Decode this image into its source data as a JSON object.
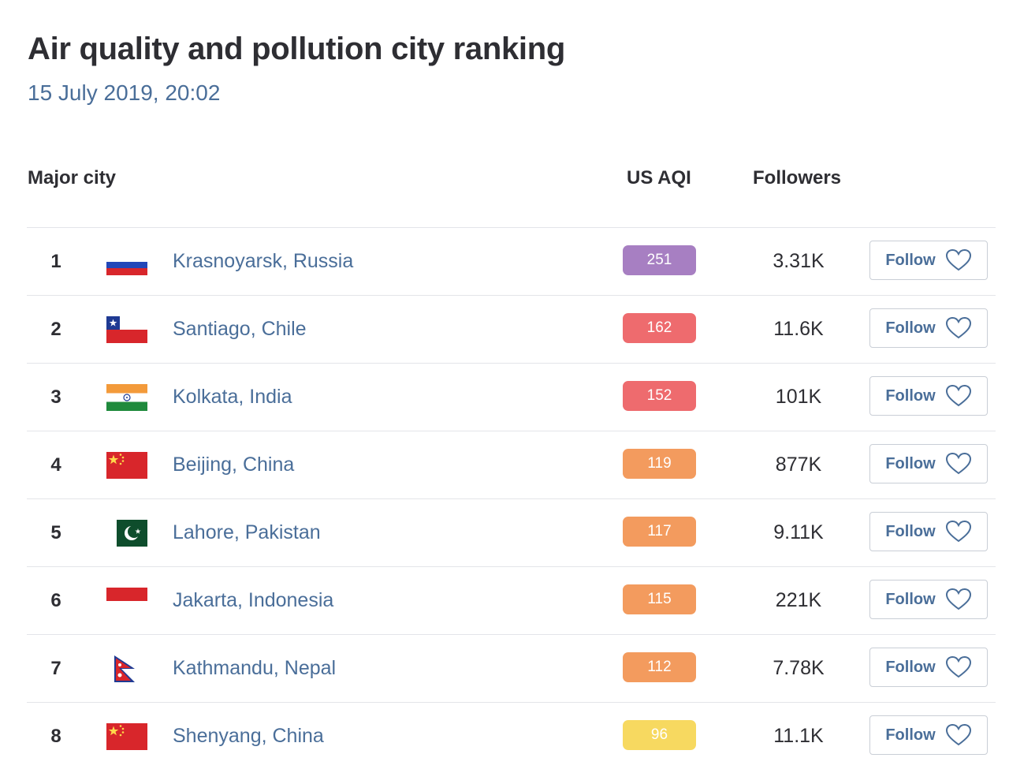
{
  "page": {
    "title": "Air quality and pollution city ranking",
    "timestamp": "15 July 2019, 20:02"
  },
  "table": {
    "headers": {
      "city": "Major city",
      "aqi": "US AQI",
      "followers": "Followers"
    },
    "follow_label": "Follow",
    "heart_icon": "heart-outline-icon",
    "rows": [
      {
        "rank": "1",
        "flag": "russia-flag-icon",
        "city": "Krasnoyarsk, Russia",
        "aqi": "251",
        "aqi_color": "#a77fc2",
        "followers": "3.31K"
      },
      {
        "rank": "2",
        "flag": "chile-flag-icon",
        "city": "Santiago, Chile",
        "aqi": "162",
        "aqi_color": "#ee6b6e",
        "followers": "11.6K"
      },
      {
        "rank": "3",
        "flag": "india-flag-icon",
        "city": "Kolkata, India",
        "aqi": "152",
        "aqi_color": "#ee6b6e",
        "followers": "101K"
      },
      {
        "rank": "4",
        "flag": "china-flag-icon",
        "city": "Beijing, China",
        "aqi": "119",
        "aqi_color": "#f39b5e",
        "followers": "877K"
      },
      {
        "rank": "5",
        "flag": "pakistan-flag-icon",
        "city": "Lahore, Pakistan",
        "aqi": "117",
        "aqi_color": "#f39b5e",
        "followers": "9.11K"
      },
      {
        "rank": "6",
        "flag": "indonesia-flag-icon",
        "city": "Jakarta, Indonesia",
        "aqi": "115",
        "aqi_color": "#f39b5e",
        "followers": "221K"
      },
      {
        "rank": "7",
        "flag": "nepal-flag-icon",
        "city": "Kathmandu, Nepal",
        "aqi": "112",
        "aqi_color": "#f39b5e",
        "followers": "7.78K"
      },
      {
        "rank": "8",
        "flag": "china-flag-icon",
        "city": "Shenyang, China",
        "aqi": "96",
        "aqi_color": "#f7d960",
        "followers": "11.1K"
      }
    ]
  }
}
